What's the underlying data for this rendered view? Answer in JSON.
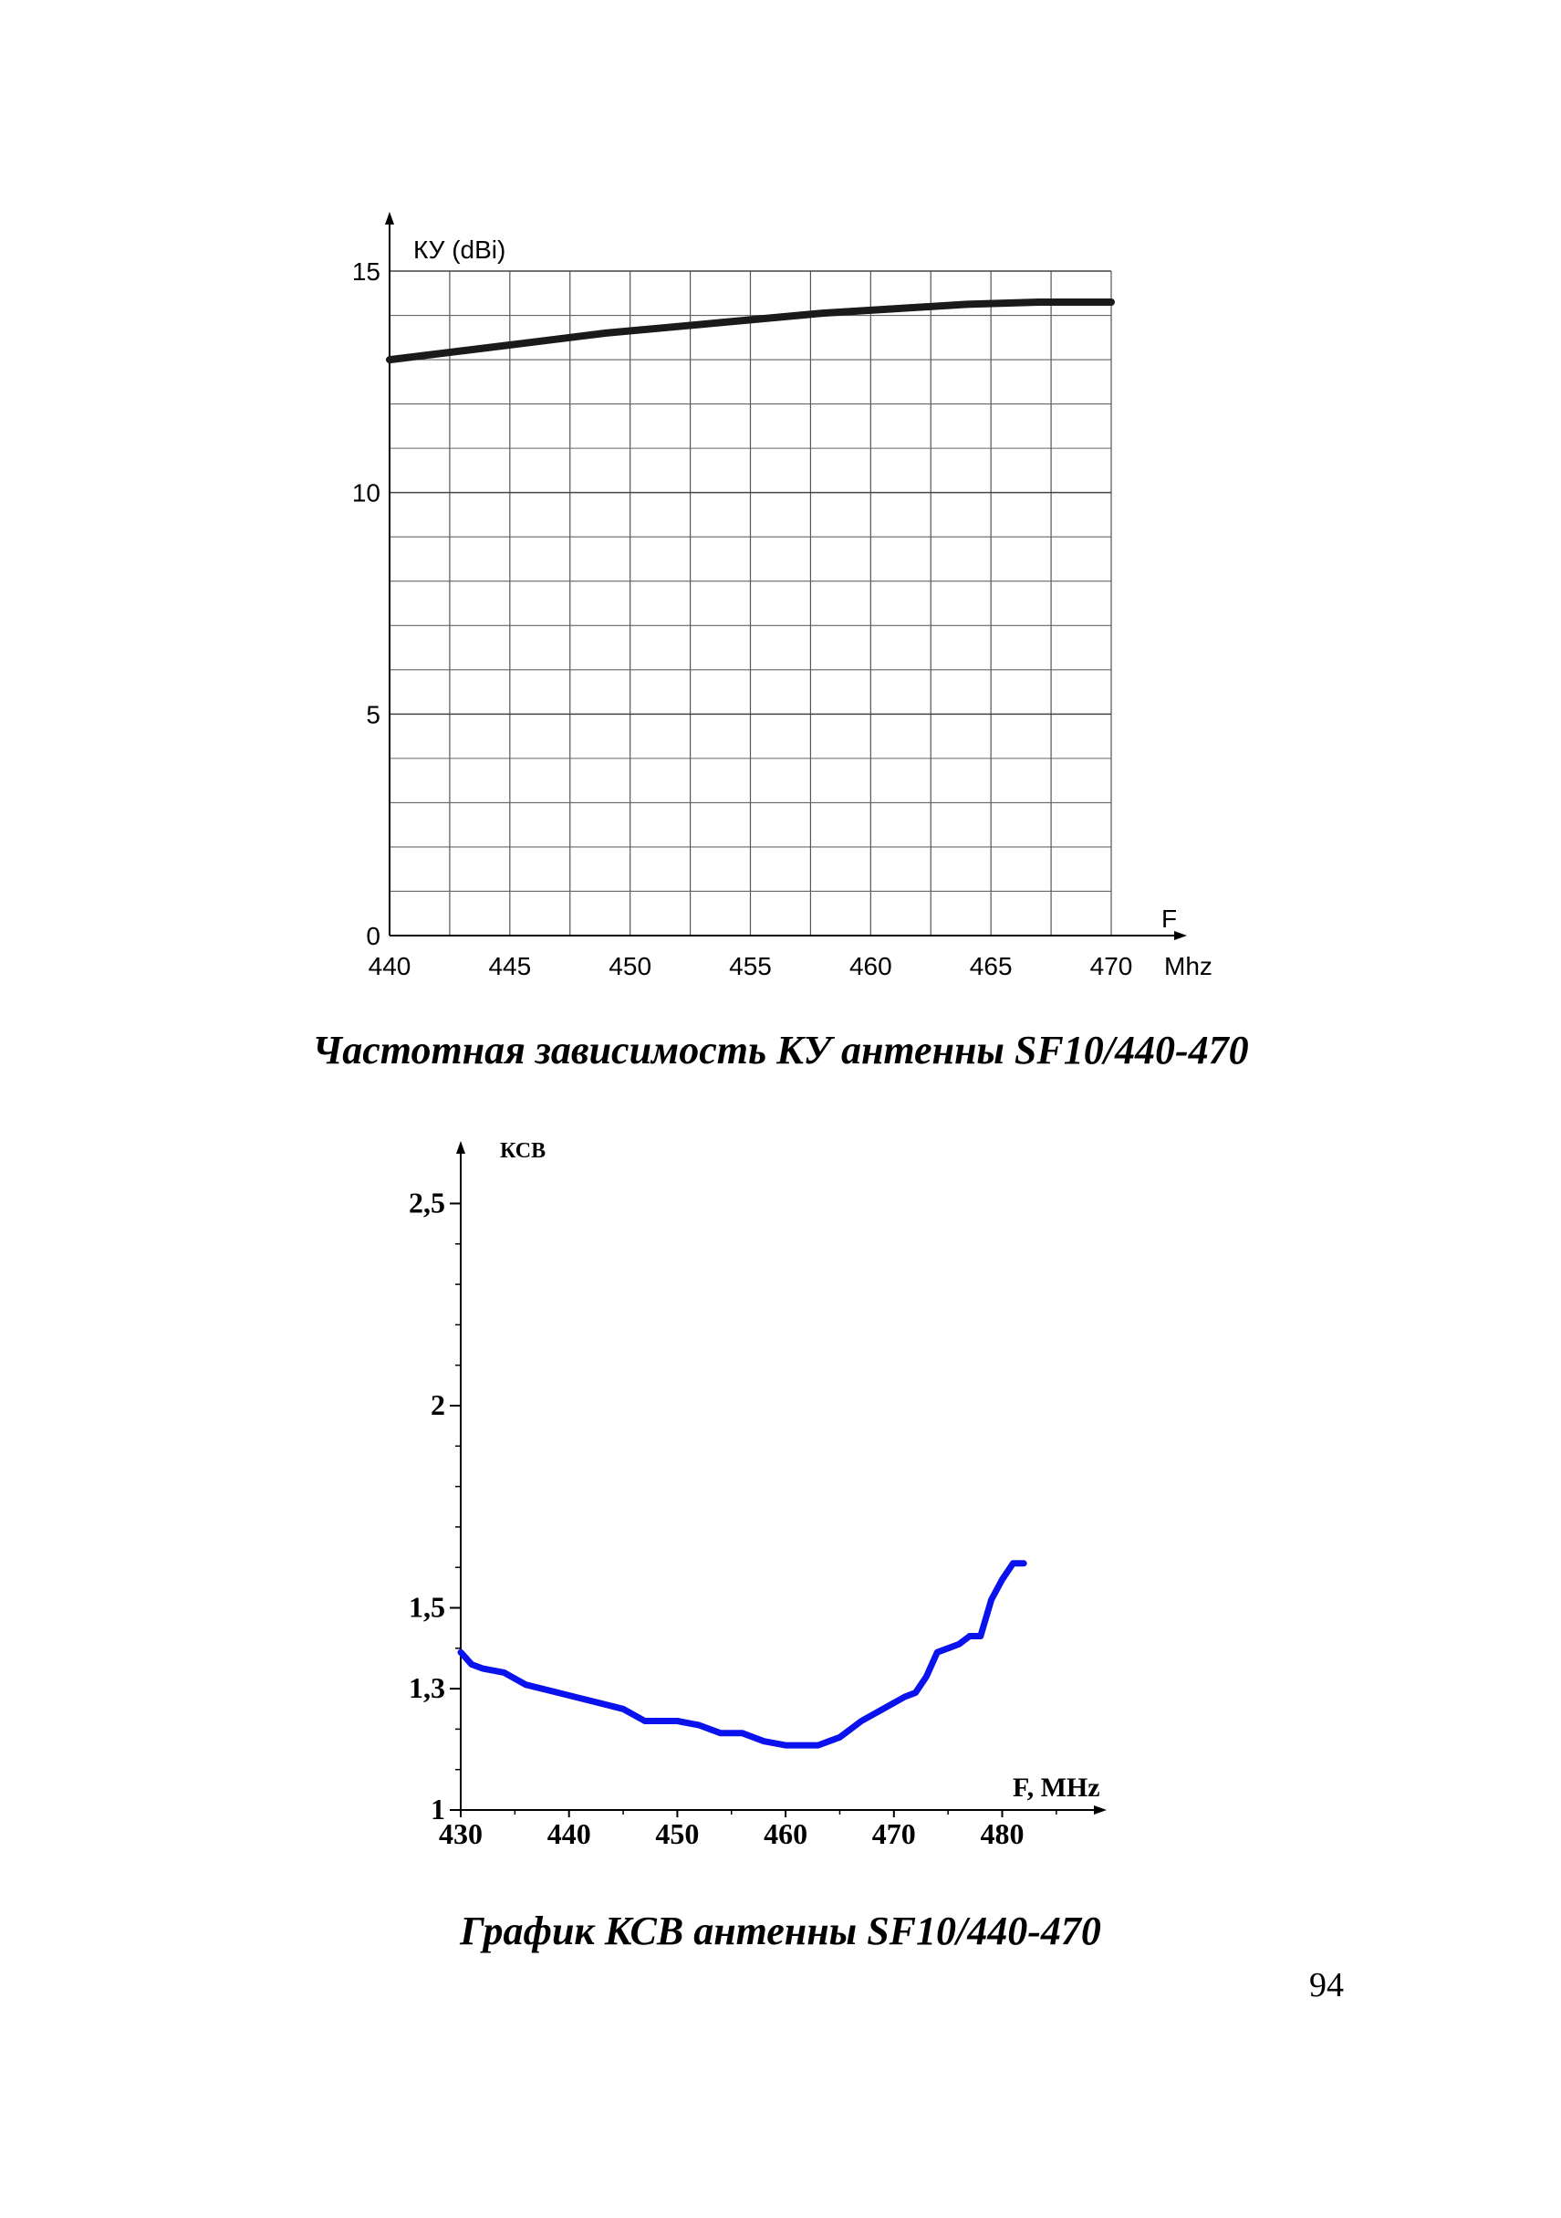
{
  "page_number": "94",
  "captions": {
    "gain": "Частотная зависимость КУ антенны SF10/440-470",
    "swr": "График КСВ антенны SF10/440-470"
  },
  "chart_data": [
    {
      "type": "line",
      "title": "",
      "ylabel": "КУ (dBi)",
      "xlabel": "F",
      "xunit": "Mhz",
      "xlim": [
        440,
        470
      ],
      "ylim": [
        0,
        15
      ],
      "grid": true,
      "x_ticks": [
        "440",
        "445",
        "450",
        "455",
        "460",
        "465",
        "470"
      ],
      "y_ticks": [
        "0",
        "5",
        "10",
        "15"
      ],
      "series": [
        {
          "x": [
            440,
            443,
            446,
            449,
            452,
            455,
            458,
            461,
            464,
            467,
            470
          ],
          "y": [
            13.0,
            13.2,
            13.4,
            13.6,
            13.75,
            13.9,
            14.05,
            14.15,
            14.25,
            14.3,
            14.3
          ],
          "color": "#1a1a1a"
        }
      ]
    },
    {
      "type": "line",
      "title": "",
      "ylabel": "КСВ",
      "xlabel": "F, MHz",
      "xlim": [
        430,
        488
      ],
      "ylim": [
        1,
        2.6
      ],
      "grid": false,
      "x_ticks": [
        "430",
        "440",
        "450",
        "460",
        "470",
        "480"
      ],
      "y_ticks": [
        "1",
        "1,3",
        "1,5",
        "2",
        "2,5"
      ],
      "series": [
        {
          "x": [
            430,
            431,
            432,
            434,
            436,
            439,
            442,
            445,
            447,
            450,
            452,
            454,
            456,
            458,
            460,
            461,
            462,
            463,
            464,
            465,
            467,
            469,
            471,
            472,
            473,
            474,
            475,
            476,
            477,
            478,
            479,
            480,
            481,
            482
          ],
          "y": [
            1.39,
            1.36,
            1.35,
            1.34,
            1.31,
            1.29,
            1.27,
            1.25,
            1.22,
            1.22,
            1.21,
            1.19,
            1.19,
            1.17,
            1.16,
            1.16,
            1.16,
            1.16,
            1.17,
            1.18,
            1.22,
            1.25,
            1.28,
            1.29,
            1.33,
            1.39,
            1.4,
            1.41,
            1.43,
            1.43,
            1.52,
            1.57,
            1.61,
            1.61
          ],
          "color": "#0a12ee"
        }
      ]
    }
  ]
}
